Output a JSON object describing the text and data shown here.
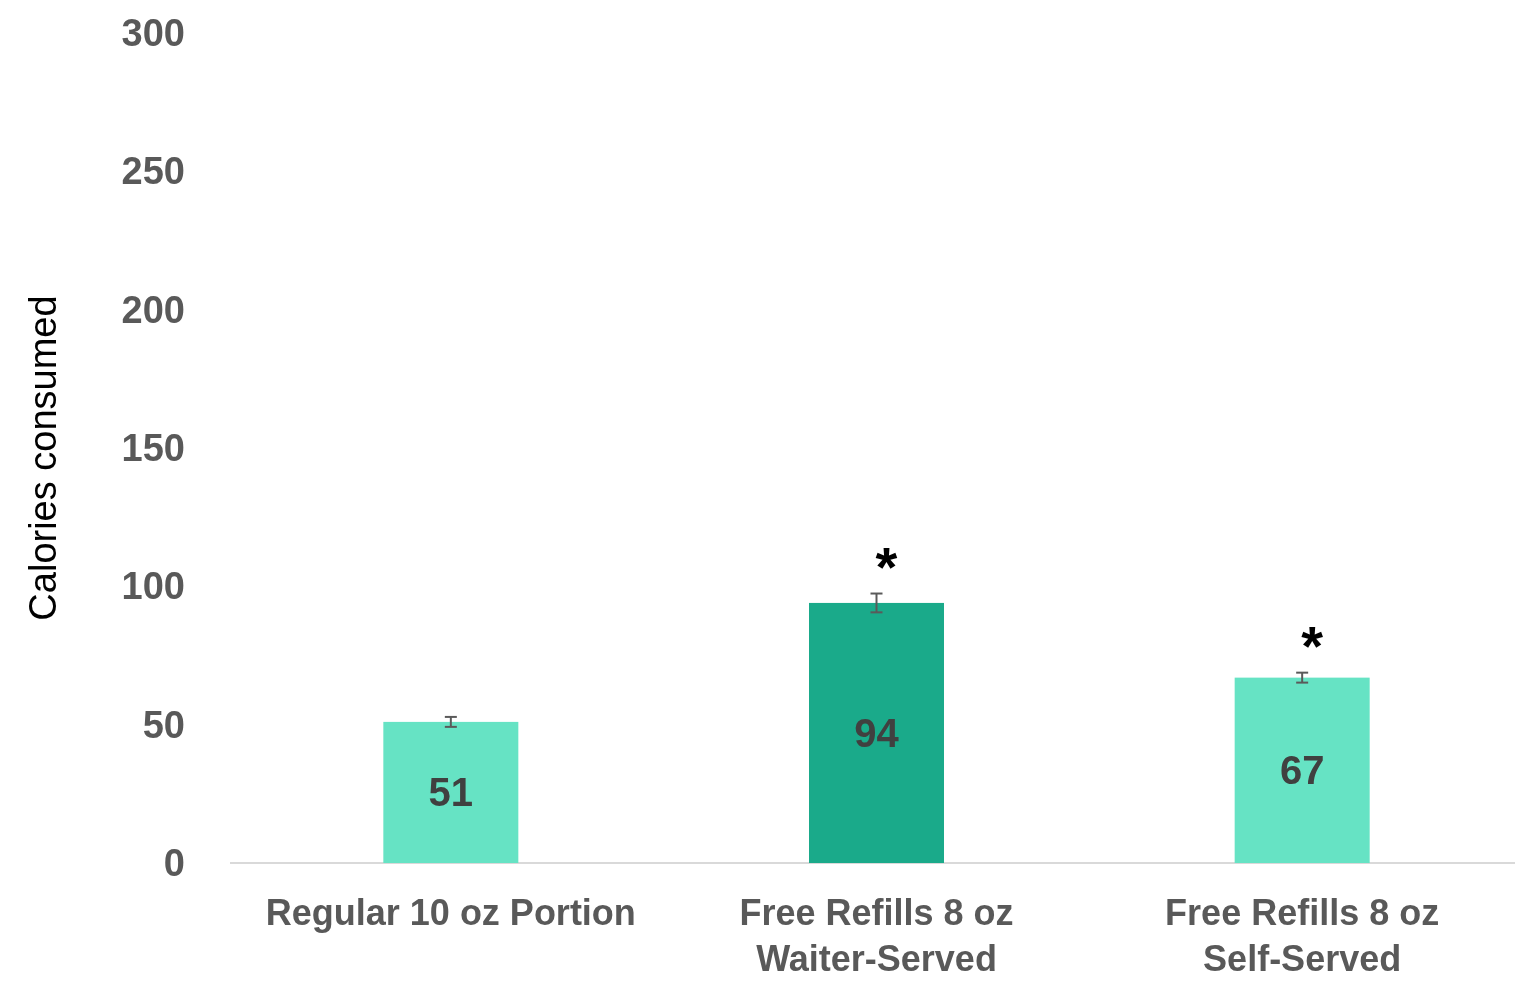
{
  "chart_data": {
    "type": "bar",
    "ylabel": "Calories consumed",
    "categories": [
      "Regular 10 oz Portion",
      "Free Refills 8 oz Waiter-Served",
      "Free Refills 8 oz Self-Served"
    ],
    "values": [
      51,
      94,
      67
    ],
    "colors": [
      "#66e3c4",
      "#1aaa8a",
      "#66e3c4"
    ],
    "errors": [
      1.8,
      3.4,
      1.8
    ],
    "ylim": [
      0,
      300
    ],
    "yticks": [
      0,
      50,
      100,
      150,
      200,
      250,
      300
    ],
    "grid": false,
    "data_labels": true,
    "annotations": [
      "*",
      "*"
    ]
  }
}
